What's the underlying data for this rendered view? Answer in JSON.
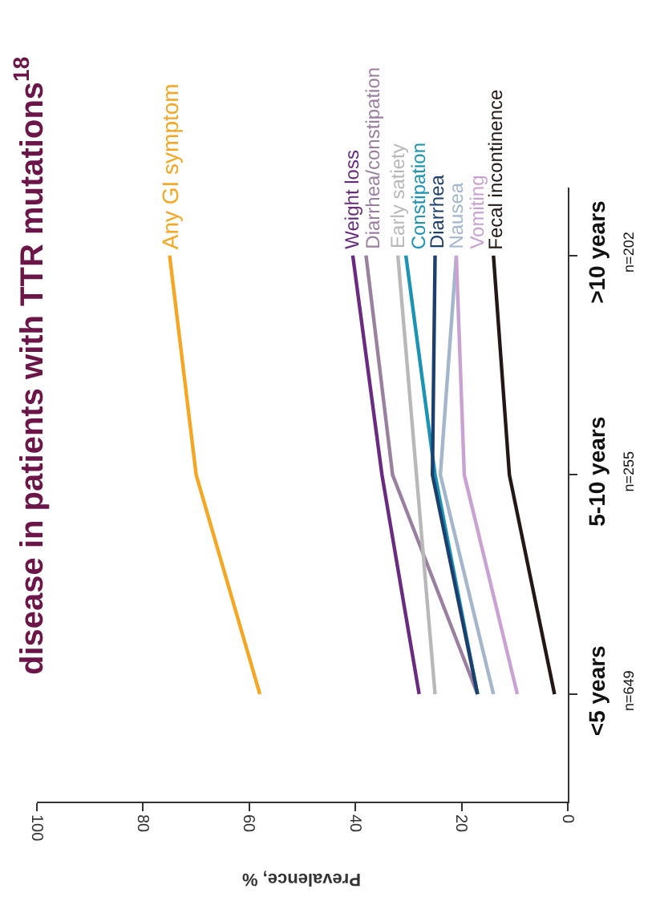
{
  "chart_data": {
    "type": "line",
    "orientation": "horizontal",
    "title": "disease in patients with $_{}$TTR mutations$^{18}$",
    "xlabel": "Prevalence, %",
    "categories": [
      ">10 years\nn=202",
      "5-10 years\nn=255",
      "<5 years\nn=649"
    ],
    "xlim": [
      100,
      0
    ],
    "xticks": [
      0,
      20,
      40,
      60,
      80,
      100
    ],
    "marker": "none",
    "line_style": "solid",
    "series": [
      {
        "name": "Any GI symptom",
        "color": "#f5a623",
        "values": [
          75,
          70,
          58
        ]
      },
      {
        "name": "Weight loss",
        "color": "#6a2a7f",
        "values": [
          40.5,
          35,
          28
        ]
      },
      {
        "name": "Diarrhea/constipation",
        "color": "#9b7fa0",
        "values": [
          38,
          33,
          17
        ]
      },
      {
        "name": "Early satiety",
        "color": "#b8b8b8",
        "values": [
          32,
          28.5,
          25
        ]
      },
      {
        "name": "Constipation",
        "color": "#1b93b5",
        "values": [
          30.5,
          25,
          17
        ]
      },
      {
        "name": "Diarrhea",
        "color": "#1d3f6e",
        "values": [
          25,
          25.5,
          17
        ]
      },
      {
        "name": "Nausea",
        "color": "#a3b6cc",
        "values": [
          21,
          24,
          14
        ]
      },
      {
        "name": "Vomiting",
        "color": "#c9a1d2",
        "values": [
          21,
          19.5,
          9.5
        ]
      },
      {
        "name": "Fecal incontinence",
        "color": "#231815",
        "values": [
          14,
          11,
          2.5
        ]
      }
    ]
  }
}
